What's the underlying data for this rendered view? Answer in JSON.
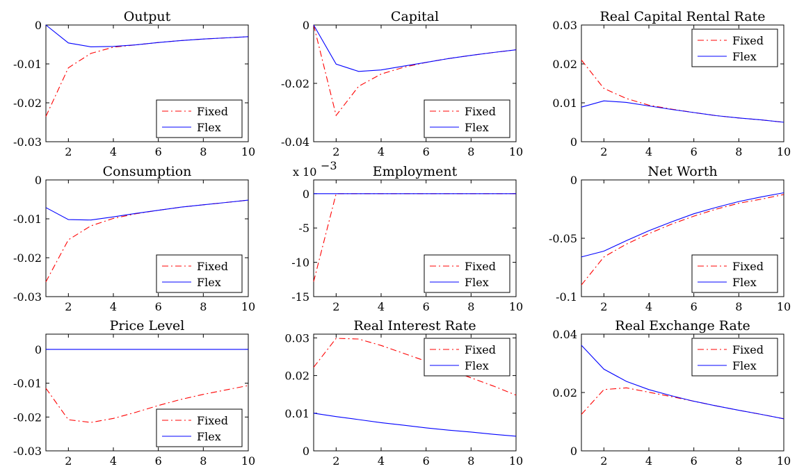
{
  "chart_data": [
    {
      "type": "line",
      "title": "Output",
      "x": [
        1,
        2,
        3,
        4,
        5,
        6,
        7,
        8,
        9,
        10
      ],
      "xlim": [
        1,
        10
      ],
      "ylim": [
        -0.03,
        0
      ],
      "yticks": [
        "0",
        "-0.01",
        "-0.02",
        "-0.03"
      ],
      "ytick_values": [
        0,
        -0.01,
        -0.02,
        -0.03
      ],
      "xticks": [
        "2",
        "4",
        "6",
        "8",
        "10"
      ],
      "xtick_values": [
        2,
        4,
        6,
        8,
        10
      ],
      "legend_position": "bottom-right",
      "series": [
        {
          "name": "Fixed",
          "style": "dashed",
          "color": "#ff0000",
          "values": [
            -0.0235,
            -0.011,
            -0.0073,
            -0.0057,
            -0.0051,
            -0.0045,
            -0.004,
            -0.0036,
            -0.0033,
            -0.003
          ]
        },
        {
          "name": "Flex",
          "style": "solid",
          "color": "#0000ff",
          "values": [
            0,
            -0.0046,
            -0.0056,
            -0.0055,
            -0.0051,
            -0.0045,
            -0.004,
            -0.0036,
            -0.0033,
            -0.003
          ]
        }
      ]
    },
    {
      "type": "line",
      "title": "Capital",
      "x": [
        1,
        2,
        3,
        4,
        5,
        6,
        7,
        8,
        9,
        10
      ],
      "xlim": [
        1,
        10
      ],
      "ylim": [
        -0.04,
        0
      ],
      "yticks": [
        "0",
        "-0.02",
        "-0.04"
      ],
      "ytick_values": [
        0,
        -0.02,
        -0.04
      ],
      "xticks": [
        "2",
        "4",
        "6",
        "8",
        "10"
      ],
      "xtick_values": [
        2,
        4,
        6,
        8,
        10
      ],
      "legend_position": "bottom-right",
      "series": [
        {
          "name": "Fixed",
          "style": "dashed",
          "color": "#ff0000",
          "values": [
            0,
            -0.031,
            -0.021,
            -0.0168,
            -0.0145,
            -0.0128,
            -0.0115,
            -0.0104,
            -0.0094,
            -0.0085
          ]
        },
        {
          "name": "Flex",
          "style": "solid",
          "color": "#0000ff",
          "values": [
            0,
            -0.0134,
            -0.0159,
            -0.0154,
            -0.0141,
            -0.0128,
            -0.0115,
            -0.0104,
            -0.0094,
            -0.0085
          ]
        }
      ]
    },
    {
      "type": "line",
      "title": "Real Capital Rental Rate",
      "x": [
        1,
        2,
        3,
        4,
        5,
        6,
        7,
        8,
        9,
        10
      ],
      "xlim": [
        1,
        10
      ],
      "ylim": [
        0,
        0.03
      ],
      "yticks": [
        "0.03",
        "0.02",
        "0.01",
        "0"
      ],
      "ytick_values": [
        0.03,
        0.02,
        0.01,
        0
      ],
      "xticks": [
        "2",
        "4",
        "6",
        "8",
        "10"
      ],
      "xtick_values": [
        2,
        4,
        6,
        8,
        10
      ],
      "legend_position": "top-right",
      "series": [
        {
          "name": "Fixed",
          "style": "dashed",
          "color": "#ff0000",
          "values": [
            0.021,
            0.0137,
            0.0111,
            0.0094,
            0.0084,
            0.0075,
            0.0067,
            0.0061,
            0.0056,
            0.005
          ]
        },
        {
          "name": "Flex",
          "style": "solid",
          "color": "#0000ff",
          "values": [
            0.0089,
            0.0105,
            0.0101,
            0.0092,
            0.0083,
            0.0075,
            0.0067,
            0.0061,
            0.0056,
            0.005
          ]
        }
      ]
    },
    {
      "type": "line",
      "title": "Consumption",
      "x": [
        1,
        2,
        3,
        4,
        5,
        6,
        7,
        8,
        9,
        10
      ],
      "xlim": [
        1,
        10
      ],
      "ylim": [
        -0.03,
        0
      ],
      "yticks": [
        "0",
        "-0.01",
        "-0.02",
        "-0.03"
      ],
      "ytick_values": [
        0,
        -0.01,
        -0.02,
        -0.03
      ],
      "xticks": [
        "2",
        "4",
        "6",
        "8",
        "10"
      ],
      "xtick_values": [
        2,
        4,
        6,
        8,
        10
      ],
      "legend_position": "bottom-right",
      "series": [
        {
          "name": "Fixed",
          "style": "dashed",
          "color": "#ff0000",
          "values": [
            -0.0262,
            -0.0154,
            -0.0118,
            -0.0099,
            -0.0087,
            -0.0078,
            -0.007,
            -0.0064,
            -0.0058,
            -0.0052
          ]
        },
        {
          "name": "Flex",
          "style": "solid",
          "color": "#0000ff",
          "values": [
            -0.0071,
            -0.0102,
            -0.0103,
            -0.0095,
            -0.0086,
            -0.0078,
            -0.007,
            -0.0064,
            -0.0058,
            -0.0052
          ]
        }
      ]
    },
    {
      "type": "line",
      "title": "Employment",
      "multiplier": "x 10",
      "multiplier_exp": "−3",
      "x": [
        1,
        2,
        3,
        4,
        5,
        6,
        7,
        8,
        9,
        10
      ],
      "xlim": [
        1,
        10
      ],
      "ylim": [
        -15,
        2
      ],
      "yticks": [
        "0",
        "-5",
        "-10",
        "-15"
      ],
      "ytick_values": [
        0,
        -5,
        -10,
        -15
      ],
      "xticks": [
        "2",
        "4",
        "6",
        "8",
        "10"
      ],
      "xtick_values": [
        2,
        4,
        6,
        8,
        10
      ],
      "legend_position": "bottom-right",
      "series": [
        {
          "name": "Fixed",
          "style": "dashed",
          "color": "#ff0000",
          "values": [
            -12.8,
            0,
            0,
            0,
            0,
            0,
            0,
            0,
            0,
            0
          ]
        },
        {
          "name": "Flex",
          "style": "solid",
          "color": "#0000ff",
          "values": [
            0,
            0,
            0,
            0,
            0,
            0,
            0,
            0,
            0,
            0
          ]
        }
      ]
    },
    {
      "type": "line",
      "title": "Net Worth",
      "x": [
        1,
        2,
        3,
        4,
        5,
        6,
        7,
        8,
        9,
        10
      ],
      "xlim": [
        1,
        10
      ],
      "ylim": [
        -0.1,
        0
      ],
      "yticks": [
        "0",
        "-0.05",
        "-0.1"
      ],
      "ytick_values": [
        0,
        -0.05,
        -0.1
      ],
      "xticks": [
        "2",
        "4",
        "6",
        "8",
        "10"
      ],
      "xtick_values": [
        2,
        4,
        6,
        8,
        10
      ],
      "legend_position": "bottom-right",
      "series": [
        {
          "name": "Fixed",
          "style": "dashed",
          "color": "#ff0000",
          "values": [
            -0.09,
            -0.066,
            -0.055,
            -0.046,
            -0.038,
            -0.031,
            -0.025,
            -0.02,
            -0.0165,
            -0.0125
          ]
        },
        {
          "name": "Flex",
          "style": "solid",
          "color": "#0000ff",
          "values": [
            -0.066,
            -0.061,
            -0.052,
            -0.0435,
            -0.036,
            -0.029,
            -0.0235,
            -0.0185,
            -0.0145,
            -0.011
          ]
        }
      ]
    },
    {
      "type": "line",
      "title": "Price Level",
      "x": [
        1,
        2,
        3,
        4,
        5,
        6,
        7,
        8,
        9,
        10
      ],
      "xlim": [
        1,
        10
      ],
      "ylim": [
        -0.03,
        0.0045
      ],
      "yticks": [
        "0",
        "-0.01",
        "-0.02",
        "-0.03"
      ],
      "ytick_values": [
        0,
        -0.01,
        -0.02,
        -0.03
      ],
      "xticks": [
        "2",
        "4",
        "6",
        "8",
        "10"
      ],
      "xtick_values": [
        2,
        4,
        6,
        8,
        10
      ],
      "legend_position": "bottom-right",
      "series": [
        {
          "name": "Fixed",
          "style": "dashed",
          "color": "#ff0000",
          "values": [
            -0.0115,
            -0.0208,
            -0.0216,
            -0.0204,
            -0.0186,
            -0.0166,
            -0.0148,
            -0.0133,
            -0.012,
            -0.0107
          ]
        },
        {
          "name": "Flex",
          "style": "solid",
          "color": "#0000ff",
          "values": [
            0,
            0,
            0,
            0,
            0,
            0,
            0,
            0,
            0,
            0
          ]
        }
      ]
    },
    {
      "type": "line",
      "title": "Real Interest Rate",
      "x": [
        1,
        2,
        3,
        4,
        5,
        6,
        7,
        8,
        9,
        10
      ],
      "xlim": [
        1,
        10
      ],
      "ylim": [
        0,
        0.031
      ],
      "yticks": [
        "0.03",
        "0.02",
        "0.01",
        "0"
      ],
      "ytick_values": [
        0.03,
        0.02,
        0.01,
        0
      ],
      "xticks": [
        "2",
        "4",
        "6",
        "8",
        "10"
      ],
      "xtick_values": [
        2,
        4,
        6,
        8,
        10
      ],
      "legend_position": "top-right",
      "series": [
        {
          "name": "Fixed",
          "style": "dashed",
          "color": "#ff0000",
          "values": [
            0.0222,
            0.0299,
            0.0297,
            0.028,
            0.0259,
            0.0238,
            0.0216,
            0.0194,
            0.0172,
            0.0148
          ]
        },
        {
          "name": "Flex",
          "style": "solid",
          "color": "#0000ff",
          "values": [
            0.01,
            0.0091,
            0.0083,
            0.0075,
            0.0068,
            0.0061,
            0.0055,
            0.005,
            0.0044,
            0.0039
          ]
        }
      ]
    },
    {
      "type": "line",
      "title": "Real Exchange Rate",
      "x": [
        1,
        2,
        3,
        4,
        5,
        6,
        7,
        8,
        9,
        10
      ],
      "xlim": [
        1,
        10
      ],
      "ylim": [
        0,
        0.04
      ],
      "yticks": [
        "0.04",
        "0.02",
        "0"
      ],
      "ytick_values": [
        0.04,
        0.02,
        0
      ],
      "xticks": [
        "2",
        "4",
        "6",
        "8",
        "10"
      ],
      "xtick_values": [
        2,
        4,
        6,
        8,
        10
      ],
      "legend_position": "top-right",
      "series": [
        {
          "name": "Fixed",
          "style": "dashed",
          "color": "#ff0000",
          "values": [
            0.0125,
            0.021,
            0.0216,
            0.0201,
            0.0186,
            0.017,
            0.0154,
            0.0139,
            0.0125,
            0.011
          ]
        },
        {
          "name": "Flex",
          "style": "solid",
          "color": "#0000ff",
          "values": [
            0.0362,
            0.028,
            0.0238,
            0.021,
            0.0189,
            0.017,
            0.0154,
            0.0139,
            0.0125,
            0.011
          ]
        }
      ]
    }
  ]
}
